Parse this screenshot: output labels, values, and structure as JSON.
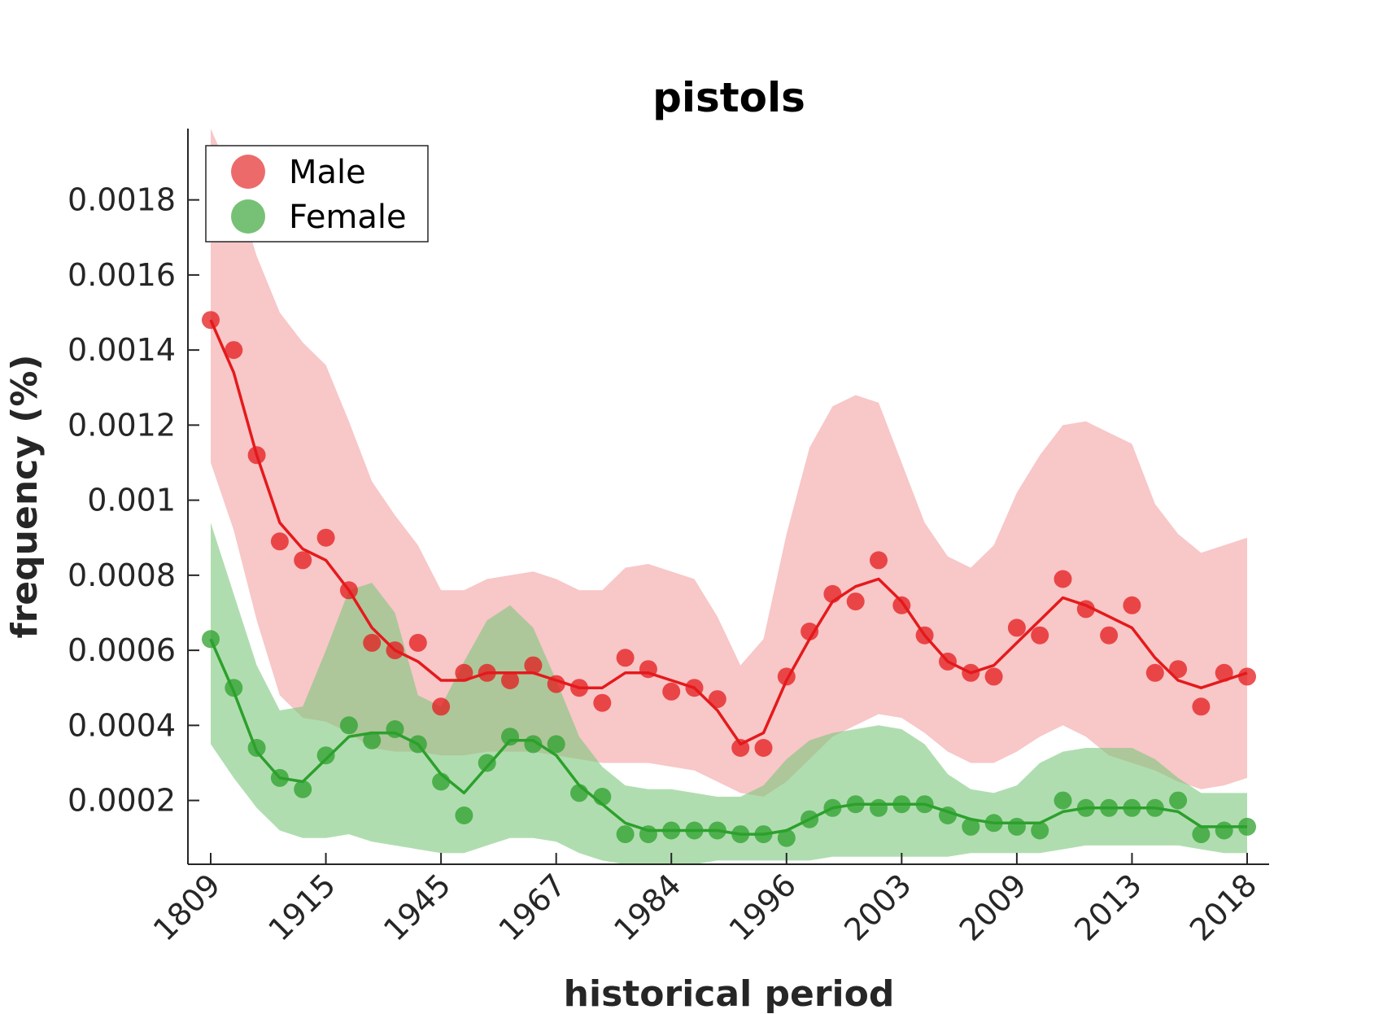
{
  "chart_data": {
    "type": "line",
    "title": "pistols",
    "xlabel": "historical period",
    "ylabel": "frequency (%)",
    "ylim": [
      3e-05,
      0.00199
    ],
    "y_ticks": [
      0.0002,
      0.0004,
      0.0006,
      0.0008,
      0.001,
      0.0012,
      0.0014,
      0.0016,
      0.0018
    ],
    "y_tick_labels": [
      "0.0002",
      "0.0004",
      "0.0006",
      "0.0008",
      "0.001",
      "0.0012",
      "0.0014",
      "0.0016",
      "0.0018"
    ],
    "x_ticks": [
      {
        "index": 0,
        "label": "1809"
      },
      {
        "index": 5,
        "label": "1915"
      },
      {
        "index": 10,
        "label": "1945"
      },
      {
        "index": 15,
        "label": "1967"
      },
      {
        "index": 20,
        "label": "1984"
      },
      {
        "index": 25,
        "label": "1996"
      },
      {
        "index": 30,
        "label": "2003"
      },
      {
        "index": 35,
        "label": "2009"
      },
      {
        "index": 40,
        "label": "2013"
      },
      {
        "index": 45,
        "label": "2018"
      }
    ],
    "legend": {
      "position": "top-left",
      "entries": [
        "Male",
        "Female"
      ]
    },
    "series": [
      {
        "name": "Male",
        "color": "#e41a1c",
        "band_color": "#f4a2a3",
        "points": [
          0.00148,
          0.0014,
          0.00112,
          0.00089,
          0.00084,
          0.0009,
          0.00076,
          0.00062,
          0.0006,
          0.00062,
          0.00045,
          0.00054,
          0.00054,
          0.00052,
          0.00056,
          0.00051,
          0.0005,
          0.00046,
          0.00058,
          0.00055,
          0.00049,
          0.0005,
          0.00047,
          0.00034,
          0.00034,
          0.00053,
          0.00065,
          0.00075,
          0.00073,
          0.00084,
          0.00072,
          0.00064,
          0.00057,
          0.00054,
          0.00053,
          0.00066,
          0.00064,
          0.00079,
          0.00071,
          0.00064,
          0.00072,
          0.00054,
          0.00055,
          0.00045,
          0.00054,
          0.00053
        ],
        "smooth": [
          0.00148,
          0.00134,
          0.00112,
          0.00094,
          0.00087,
          0.00084,
          0.00076,
          0.00066,
          0.0006,
          0.00057,
          0.00052,
          0.00052,
          0.00054,
          0.00054,
          0.00054,
          0.00052,
          0.0005,
          0.0005,
          0.00054,
          0.00054,
          0.00052,
          0.0005,
          0.00044,
          0.00035,
          0.00038,
          0.00052,
          0.00063,
          0.00073,
          0.00077,
          0.00079,
          0.00073,
          0.00064,
          0.00057,
          0.00054,
          0.00056,
          0.00062,
          0.00068,
          0.00074,
          0.00072,
          0.00069,
          0.00066,
          0.00058,
          0.00052,
          0.0005,
          0.00052,
          0.00054
        ],
        "upper": [
          0.00199,
          0.00185,
          0.00165,
          0.0015,
          0.00142,
          0.00136,
          0.00121,
          0.00105,
          0.00096,
          0.00088,
          0.00076,
          0.00076,
          0.00079,
          0.0008,
          0.00081,
          0.00079,
          0.00076,
          0.00076,
          0.00082,
          0.00083,
          0.00081,
          0.00079,
          0.00069,
          0.00056,
          0.00063,
          0.00091,
          0.00114,
          0.00125,
          0.00128,
          0.00126,
          0.0011,
          0.00094,
          0.00085,
          0.00082,
          0.00088,
          0.00102,
          0.00112,
          0.0012,
          0.00121,
          0.00118,
          0.00115,
          0.00099,
          0.00091,
          0.00086,
          0.00088,
          0.0009
        ],
        "lower": [
          0.0011,
          0.00092,
          0.00068,
          0.00048,
          0.00042,
          0.00041,
          0.00038,
          0.00034,
          0.00033,
          0.00033,
          0.00032,
          0.00032,
          0.00033,
          0.00033,
          0.00033,
          0.00032,
          0.00031,
          0.0003,
          0.0003,
          0.0003,
          0.00029,
          0.00028,
          0.00025,
          0.00022,
          0.00021,
          0.00025,
          0.00031,
          0.00037,
          0.0004,
          0.00043,
          0.00042,
          0.00038,
          0.00033,
          0.0003,
          0.0003,
          0.00033,
          0.00037,
          0.0004,
          0.00037,
          0.00032,
          0.0003,
          0.00028,
          0.00025,
          0.00023,
          0.00024,
          0.00026
        ]
      },
      {
        "name": "Female",
        "color": "#2ca02c",
        "band_color": "#7cc77c",
        "points": [
          0.00063,
          0.0005,
          0.00034,
          0.00026,
          0.00023,
          0.00032,
          0.0004,
          0.00036,
          0.00039,
          0.00035,
          0.00025,
          0.00016,
          0.0003,
          0.00037,
          0.00035,
          0.00035,
          0.00022,
          0.00021,
          0.00011,
          0.00011,
          0.00012,
          0.00012,
          0.00012,
          0.00011,
          0.00011,
          0.0001,
          0.00015,
          0.00018,
          0.00019,
          0.00018,
          0.00019,
          0.00019,
          0.00016,
          0.00013,
          0.00014,
          0.00013,
          0.00012,
          0.0002,
          0.00018,
          0.00018,
          0.00018,
          0.00018,
          0.0002,
          0.00011,
          0.00012,
          0.00013
        ],
        "smooth": [
          0.00063,
          0.00049,
          0.00033,
          0.00026,
          0.00025,
          0.00031,
          0.00037,
          0.00038,
          0.00038,
          0.00035,
          0.00027,
          0.00022,
          0.00029,
          0.00036,
          0.00036,
          0.00032,
          0.00024,
          0.00019,
          0.00014,
          0.00012,
          0.00012,
          0.00012,
          0.00012,
          0.00011,
          0.00011,
          0.00012,
          0.00015,
          0.00018,
          0.00019,
          0.00019,
          0.00019,
          0.00019,
          0.00017,
          0.00015,
          0.00014,
          0.00014,
          0.00014,
          0.00017,
          0.00018,
          0.00018,
          0.00018,
          0.00018,
          0.00017,
          0.00013,
          0.00013,
          0.00013
        ],
        "upper": [
          0.00094,
          0.00075,
          0.00056,
          0.00044,
          0.00045,
          0.0006,
          0.00076,
          0.00078,
          0.0007,
          0.00048,
          0.00045,
          0.00057,
          0.00068,
          0.00072,
          0.00066,
          0.00052,
          0.00037,
          0.00029,
          0.00024,
          0.00023,
          0.00023,
          0.00022,
          0.00021,
          0.00021,
          0.00024,
          0.00031,
          0.00036,
          0.00038,
          0.00039,
          0.0004,
          0.00039,
          0.00035,
          0.00027,
          0.00023,
          0.00022,
          0.00024,
          0.0003,
          0.00033,
          0.00034,
          0.00034,
          0.00034,
          0.00031,
          0.00026,
          0.00022,
          0.00022,
          0.00022
        ],
        "lower": [
          0.00035,
          0.00026,
          0.00018,
          0.00012,
          0.0001,
          0.0001,
          0.00011,
          9e-05,
          8e-05,
          7e-05,
          6e-05,
          6e-05,
          8e-05,
          0.0001,
          0.0001,
          9e-05,
          6e-05,
          4e-05,
          3e-05,
          3e-05,
          3e-05,
          3e-05,
          4e-05,
          4e-05,
          4e-05,
          4e-05,
          4e-05,
          5e-05,
          5e-05,
          5e-05,
          5e-05,
          5e-05,
          5e-05,
          6e-05,
          6e-05,
          6e-05,
          6e-05,
          7e-05,
          8e-05,
          8e-05,
          8e-05,
          8e-05,
          8e-05,
          7e-05,
          6e-05,
          6e-05
        ]
      }
    ]
  }
}
